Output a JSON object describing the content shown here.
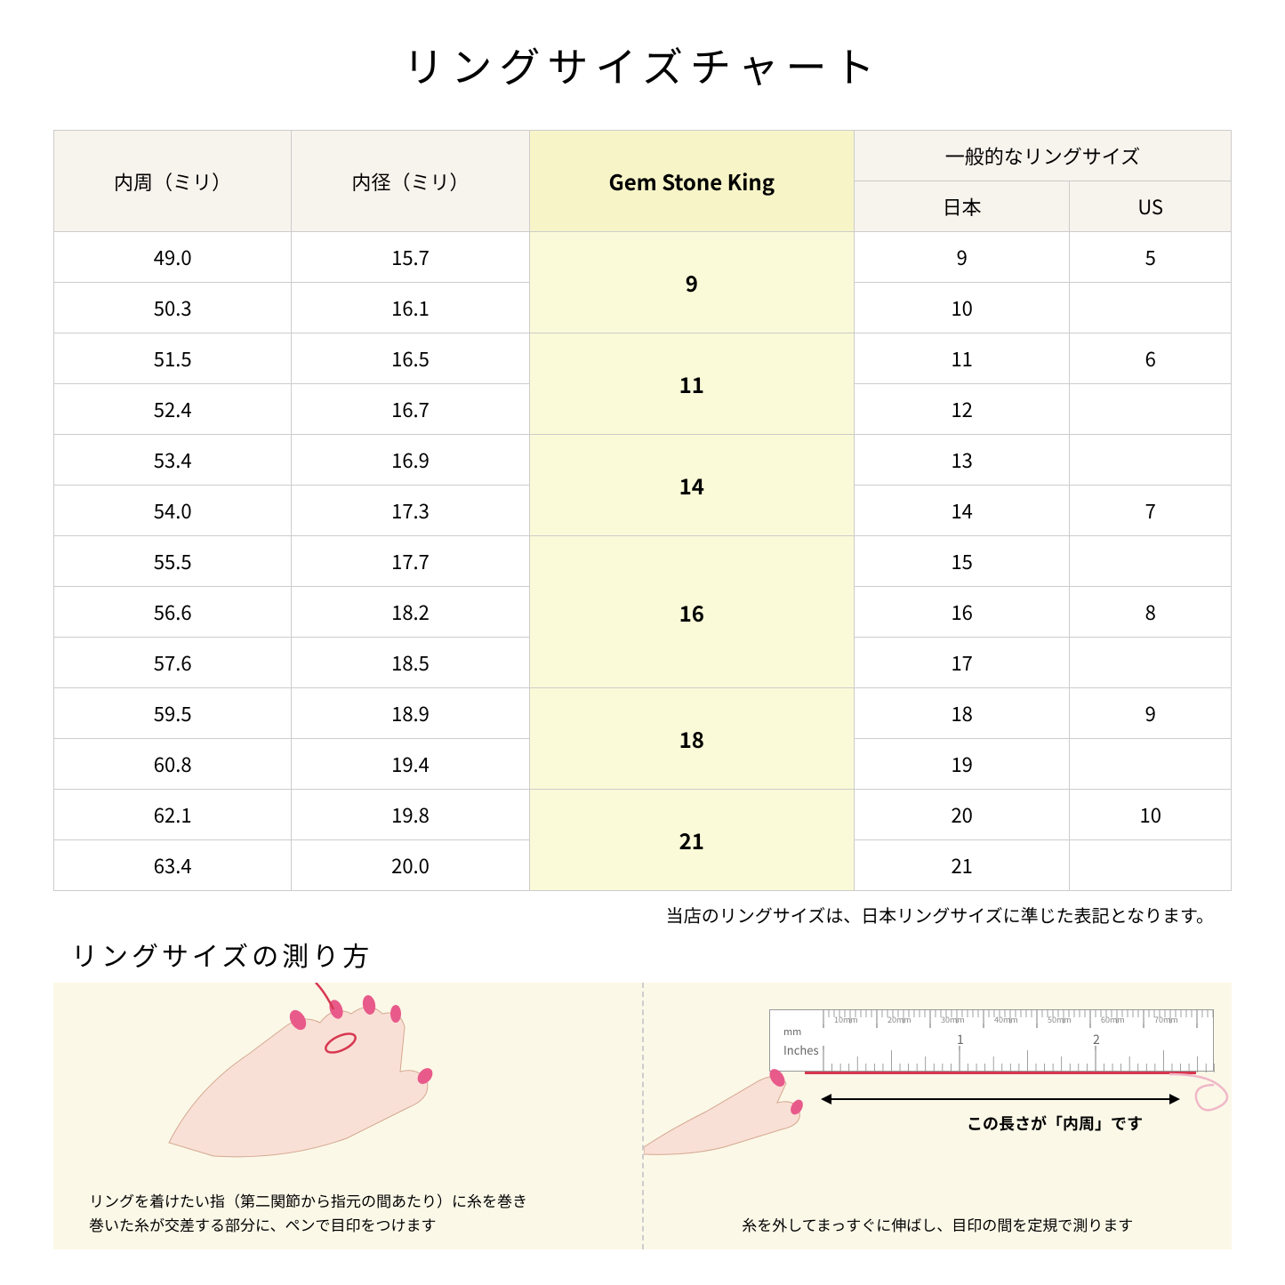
{
  "title": "リングサイズチャート",
  "table": {
    "headers": {
      "circumference": "内周（ミリ）",
      "diameter": "内径（ミリ）",
      "gemstone": "Gem Stone King",
      "general": "一般的なリングサイズ",
      "japan": "日本",
      "us": "US"
    },
    "groups": [
      {
        "gsk": "9",
        "rows": [
          {
            "c": "49.0",
            "d": "15.7",
            "jp": "9",
            "us": "5"
          },
          {
            "c": "50.3",
            "d": "16.1",
            "jp": "10",
            "us": ""
          }
        ]
      },
      {
        "gsk": "11",
        "rows": [
          {
            "c": "51.5",
            "d": "16.5",
            "jp": "11",
            "us": "6"
          },
          {
            "c": "52.4",
            "d": "16.7",
            "jp": "12",
            "us": ""
          }
        ]
      },
      {
        "gsk": "14",
        "rows": [
          {
            "c": "53.4",
            "d": "16.9",
            "jp": "13",
            "us": ""
          },
          {
            "c": "54.0",
            "d": "17.3",
            "jp": "14",
            "us": "7"
          }
        ]
      },
      {
        "gsk": "16",
        "rows": [
          {
            "c": "55.5",
            "d": "17.7",
            "jp": "15",
            "us": ""
          },
          {
            "c": "56.6",
            "d": "18.2",
            "jp": "16",
            "us": "8"
          },
          {
            "c": "57.6",
            "d": "18.5",
            "jp": "17",
            "us": ""
          }
        ]
      },
      {
        "gsk": "18",
        "rows": [
          {
            "c": "59.5",
            "d": "18.9",
            "jp": "18",
            "us": "9"
          },
          {
            "c": "60.8",
            "d": "19.4",
            "jp": "19",
            "us": ""
          }
        ]
      },
      {
        "gsk": "21",
        "rows": [
          {
            "c": "62.1",
            "d": "19.8",
            "jp": "20",
            "us": "10"
          },
          {
            "c": "63.4",
            "d": "20.0",
            "jp": "21",
            "us": ""
          }
        ]
      }
    ]
  },
  "note": "当店のリングサイズは、日本リングサイズに準じた表記となります。",
  "measure": {
    "title": "リングサイズの測り方",
    "left_caption": "リングを着けたい指（第二関節から指元の間あたり）に糸を巻き\n巻いた糸が交差する部分に、ペンで目印をつけます",
    "right_caption": "糸を外してまっすぐに伸ばし、目印の間を定規で測ります",
    "arrow_label": "この長さが「内周」です",
    "ruler_labels": {
      "mm": "mm",
      "inches": "Inches",
      "mm_marks": [
        "10mm",
        "20mm",
        "30mm",
        "40mm",
        "50mm",
        "60mm",
        "70mm"
      ]
    }
  },
  "colors": {
    "header_bg": "#f7f3ed",
    "gemstone_bg": "#f7f5c8",
    "gemstone_cell_bg": "#fafad8",
    "measure_bg": "#fbf8e8",
    "hand_fill": "#f9e0d6",
    "nail_fill": "#e85a8a",
    "thread": "#d73850"
  }
}
